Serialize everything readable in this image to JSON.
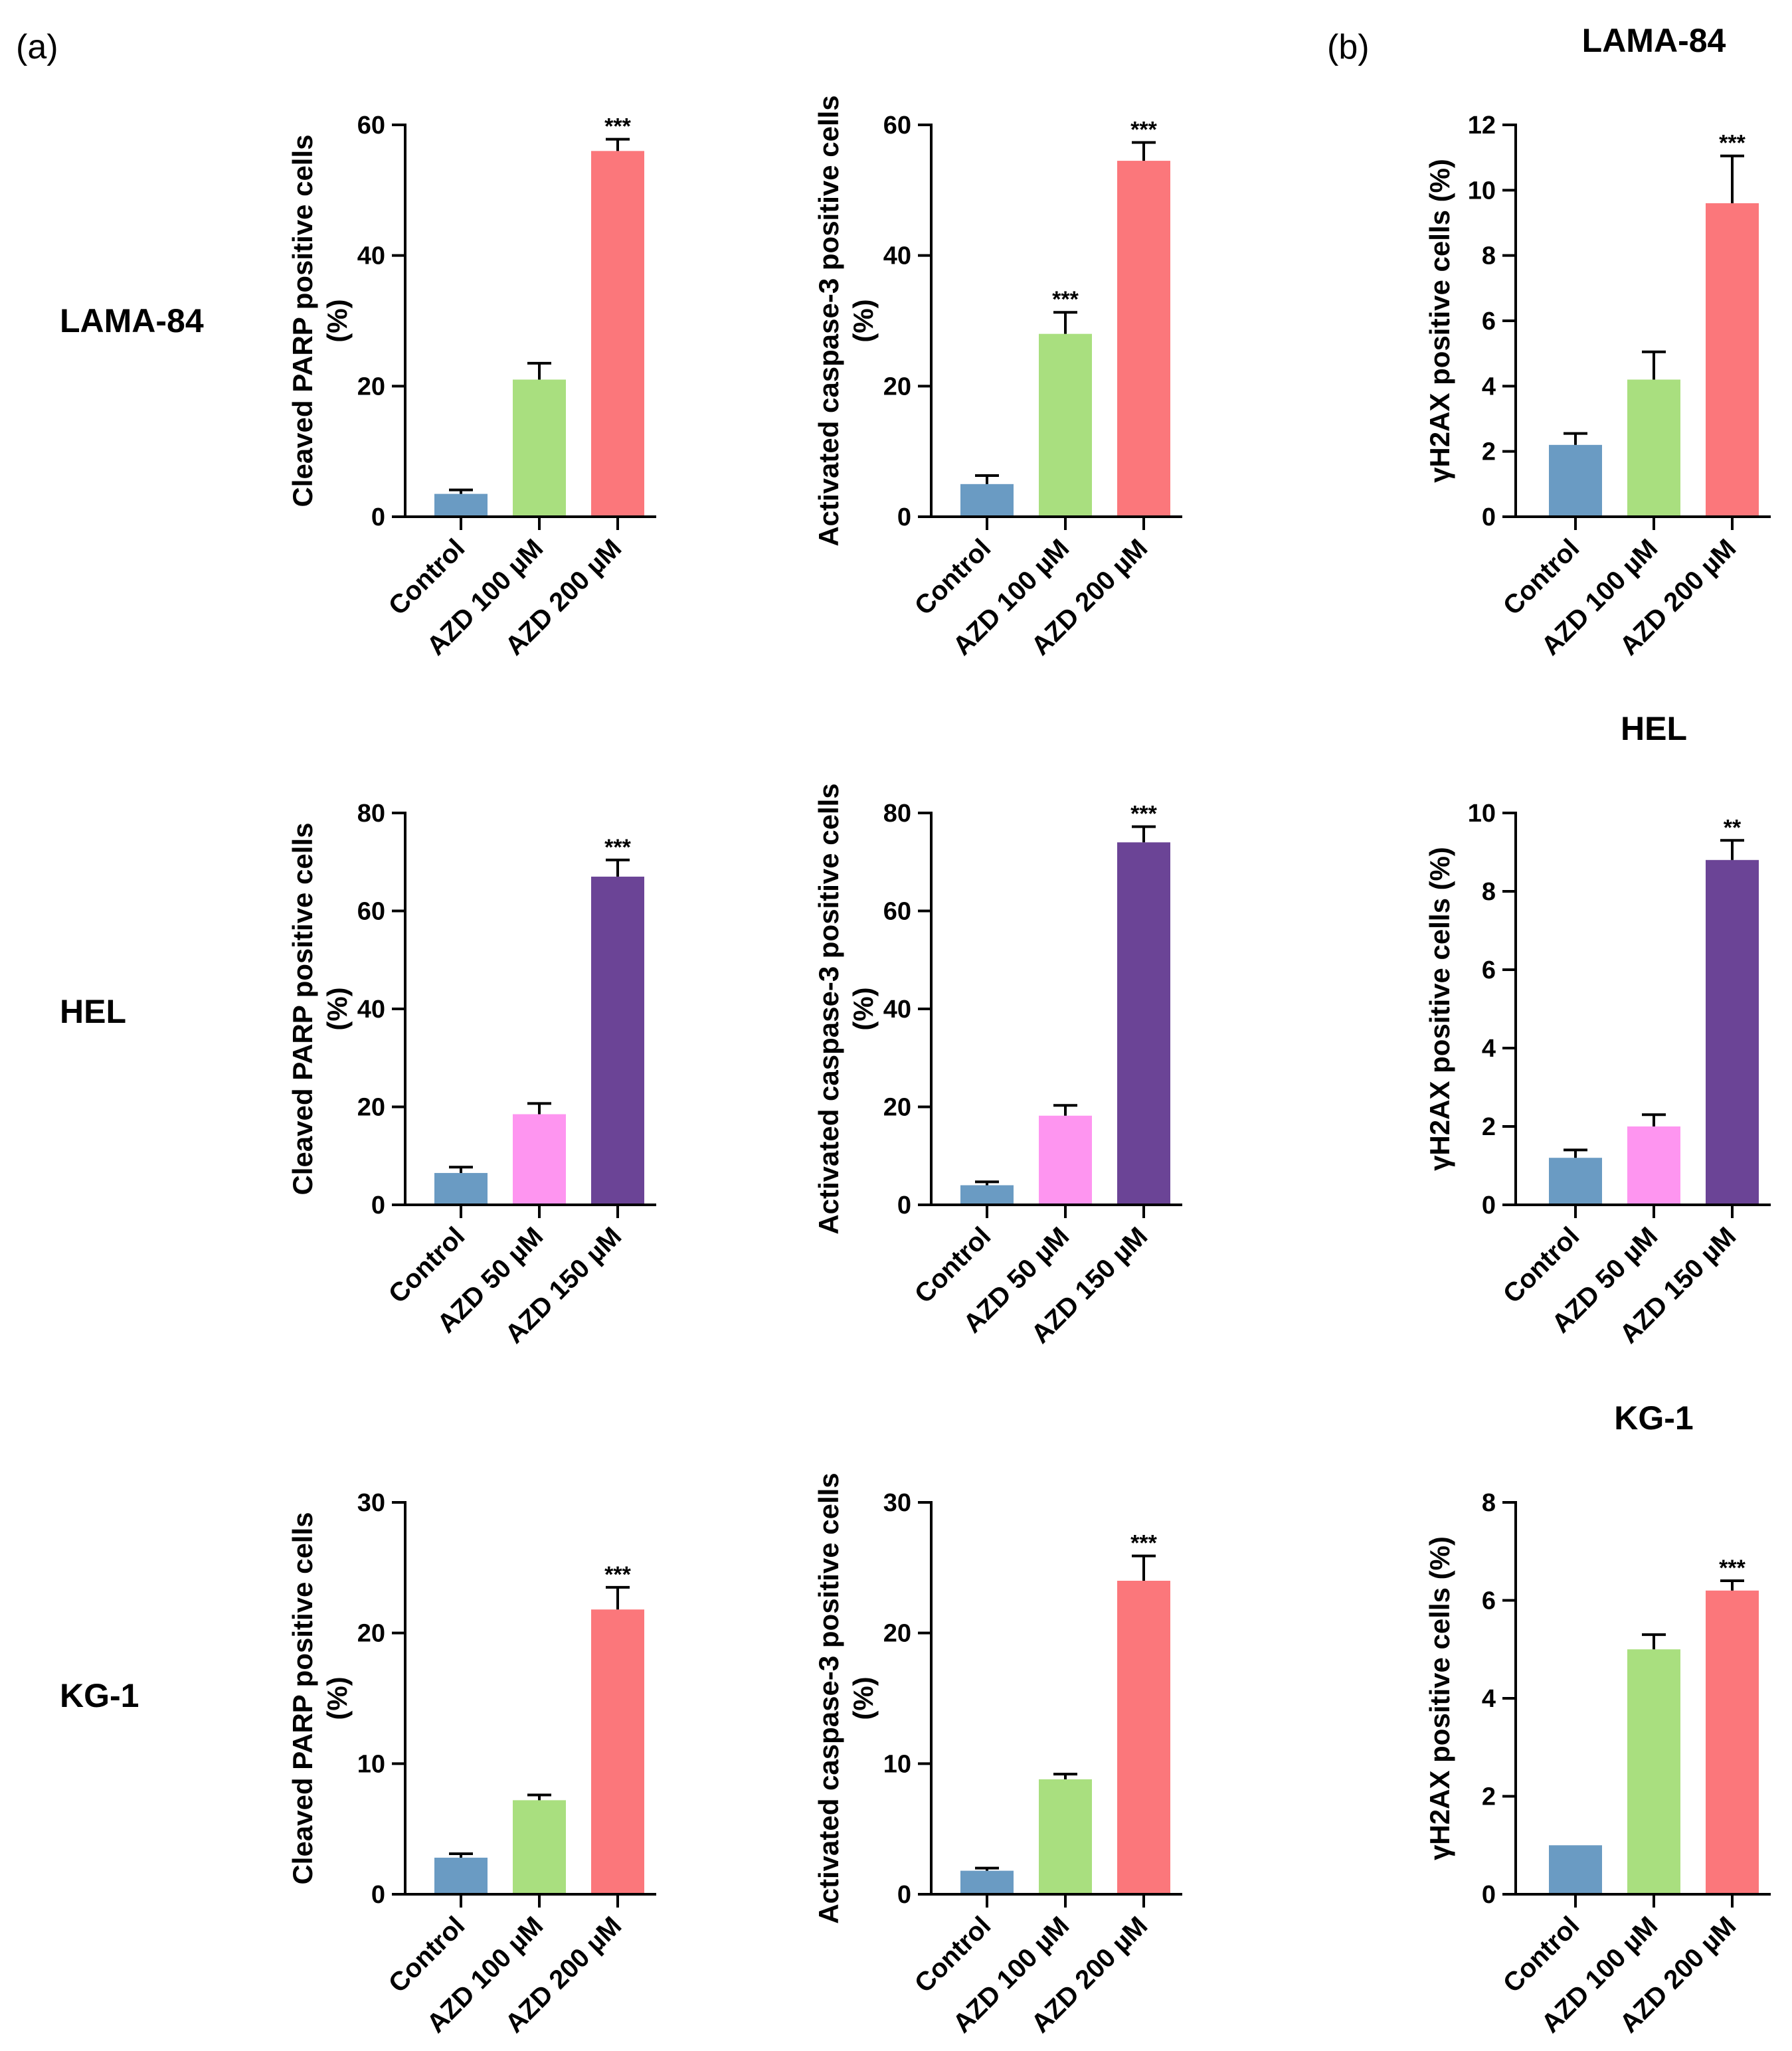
{
  "panel_labels": {
    "a": "(a)",
    "b": "(b)"
  },
  "row_labels": [
    "LAMA-84",
    "HEL",
    "KG-1"
  ],
  "colors": {
    "control": "#6a9bc3",
    "green": "#a9df7f",
    "red": "#fb777b",
    "pink": "#fe95f0",
    "purple": "#6b4496",
    "axis": "#000000"
  },
  "chart_data": [
    {
      "type": "bar",
      "row": 0,
      "col": 0,
      "title": "",
      "ylabel": [
        "Cleaved PARP positive cells",
        "(%)"
      ],
      "categories": [
        "Control",
        "AZD 100 µM",
        "AZD 200 µM"
      ],
      "values": [
        3.5,
        21,
        56
      ],
      "errors": [
        0.6,
        2.5,
        1.8
      ],
      "colors": [
        "control",
        "green",
        "red"
      ],
      "significance": [
        "",
        "",
        "***"
      ],
      "ylim": [
        0,
        60
      ],
      "yticks": [
        0,
        20,
        40,
        60
      ]
    },
    {
      "type": "bar",
      "row": 0,
      "col": 1,
      "title": "",
      "ylabel": [
        "Activated caspase-3 positive cells",
        "(%)"
      ],
      "categories": [
        "Control",
        "AZD 100 µM",
        "AZD 200 µM"
      ],
      "values": [
        5,
        28,
        54.5
      ],
      "errors": [
        1.3,
        3.3,
        2.8
      ],
      "colors": [
        "control",
        "green",
        "red"
      ],
      "significance": [
        "",
        "***",
        "***"
      ],
      "ylim": [
        0,
        60
      ],
      "yticks": [
        0,
        20,
        40,
        60
      ]
    },
    {
      "type": "bar",
      "row": 0,
      "col": 2,
      "title": "LAMA-84",
      "ylabel": [
        "γH2AX positive cells (%)"
      ],
      "categories": [
        "Control",
        "AZD 100 µM",
        "AZD 200 µM"
      ],
      "values": [
        2.2,
        4.2,
        9.6
      ],
      "errors": [
        0.35,
        0.85,
        1.45
      ],
      "colors": [
        "control",
        "green",
        "red"
      ],
      "significance": [
        "",
        "",
        "***"
      ],
      "ylim": [
        0,
        12
      ],
      "yticks": [
        0,
        2,
        4,
        6,
        8,
        10,
        12
      ]
    },
    {
      "type": "bar",
      "row": 1,
      "col": 0,
      "title": "",
      "ylabel": [
        "Cleaved PARP positive cells",
        "(%)"
      ],
      "categories": [
        "Control",
        "AZD 50 µM",
        "AZD 150 µM"
      ],
      "values": [
        6.5,
        18.5,
        67
      ],
      "errors": [
        1.2,
        2.2,
        3.4
      ],
      "colors": [
        "control",
        "pink",
        "purple"
      ],
      "significance": [
        "",
        "",
        "***"
      ],
      "ylim": [
        0,
        80
      ],
      "yticks": [
        0,
        20,
        40,
        60,
        80
      ]
    },
    {
      "type": "bar",
      "row": 1,
      "col": 1,
      "title": "",
      "ylabel": [
        "Activated caspase-3 positive cells",
        "(%)"
      ],
      "categories": [
        "Control",
        "AZD 50 µM",
        "AZD 150 µM"
      ],
      "values": [
        4,
        18.2,
        74
      ],
      "errors": [
        0.7,
        2.1,
        3.2
      ],
      "colors": [
        "control",
        "pink",
        "purple"
      ],
      "significance": [
        "",
        "",
        "***"
      ],
      "ylim": [
        0,
        80
      ],
      "yticks": [
        0,
        20,
        40,
        60,
        80
      ]
    },
    {
      "type": "bar",
      "row": 1,
      "col": 2,
      "title": "HEL",
      "ylabel": [
        "γH2AX positive cells (%)"
      ],
      "categories": [
        "Control",
        "AZD 50 µM",
        "AZD 150 µM"
      ],
      "values": [
        1.2,
        2,
        8.8
      ],
      "errors": [
        0.2,
        0.3,
        0.5
      ],
      "colors": [
        "control",
        "pink",
        "purple"
      ],
      "significance": [
        "",
        "",
        "**"
      ],
      "ylim": [
        0,
        10
      ],
      "yticks": [
        0,
        2,
        4,
        6,
        8,
        10
      ]
    },
    {
      "type": "bar",
      "row": 2,
      "col": 0,
      "title": "",
      "ylabel": [
        "Cleaved PARP positive cells",
        "(%)"
      ],
      "categories": [
        "Control",
        "AZD 100 µM",
        "AZD 200 µM"
      ],
      "values": [
        2.8,
        7.2,
        21.8
      ],
      "errors": [
        0.3,
        0.4,
        1.7
      ],
      "colors": [
        "control",
        "green",
        "red"
      ],
      "significance": [
        "",
        "",
        "***"
      ],
      "ylim": [
        0,
        30
      ],
      "yticks": [
        0,
        10,
        20,
        30
      ]
    },
    {
      "type": "bar",
      "row": 2,
      "col": 1,
      "title": "",
      "ylabel": [
        "Activated caspase-3 positive cells",
        "(%)"
      ],
      "categories": [
        "Control",
        "AZD 100 µM",
        "AZD 200 µM"
      ],
      "values": [
        1.8,
        8.8,
        24
      ],
      "errors": [
        0.2,
        0.4,
        1.9
      ],
      "colors": [
        "control",
        "green",
        "red"
      ],
      "significance": [
        "",
        "",
        "***"
      ],
      "ylim": [
        0,
        30
      ],
      "yticks": [
        0,
        10,
        20,
        30
      ]
    },
    {
      "type": "bar",
      "row": 2,
      "col": 2,
      "title": "KG-1",
      "ylabel": [
        "γH2AX positive cells (%)"
      ],
      "categories": [
        "Control",
        "AZD 100 µM",
        "AZD 200 µM"
      ],
      "values": [
        1,
        5,
        6.2
      ],
      "errors": [
        0,
        0.3,
        0.2
      ],
      "colors": [
        "control",
        "green",
        "red"
      ],
      "significance": [
        "",
        "",
        "***"
      ],
      "ylim": [
        0,
        8
      ],
      "yticks": [
        0,
        2,
        4,
        6,
        8
      ]
    }
  ]
}
